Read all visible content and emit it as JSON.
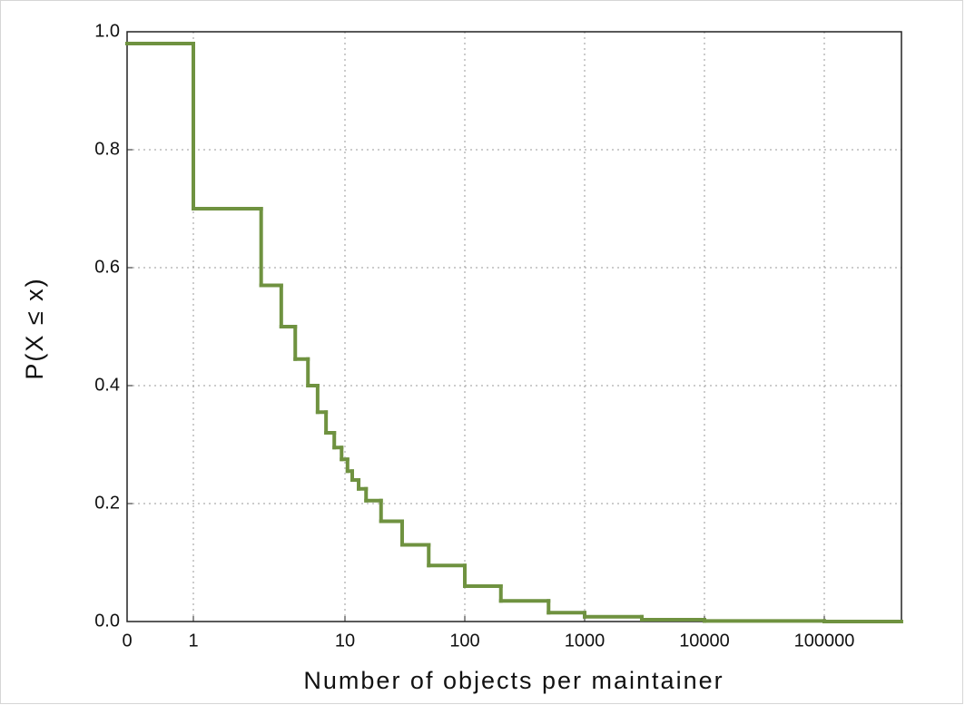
{
  "chart_data": {
    "type": "line",
    "drawstyle": "steps-post",
    "xlabel": "Number of objects per maintainer",
    "ylabel": "P(X ≤ x)",
    "color": "#6f9240",
    "grid": true,
    "x": [
      0,
      1,
      2.8,
      3.8,
      4.7,
      5.7,
      6.6,
      7.5,
      8.5,
      9.5,
      10.5,
      11.5,
      13,
      15,
      20,
      30,
      50,
      100,
      200,
      500,
      1000,
      3000,
      10000,
      100000
    ],
    "values": [
      0.98,
      0.7,
      0.57,
      0.5,
      0.445,
      0.4,
      0.355,
      0.32,
      0.295,
      0.275,
      0.255,
      0.24,
      0.225,
      0.205,
      0.17,
      0.13,
      0.095,
      0.06,
      0.035,
      0.015,
      0.008,
      0.003,
      0.001,
      0
    ],
    "xlim": [
      0,
      440000
    ],
    "xticks": [
      0,
      1,
      10,
      100,
      1000,
      10000,
      100000
    ],
    "ylim": [
      0,
      1
    ],
    "yticks": [
      {
        "value": 0,
        "label": "0.0"
      },
      {
        "value": 0.2,
        "label": "0.2"
      },
      {
        "value": 0.4,
        "label": "0.4"
      },
      {
        "value": 0.6,
        "label": "0.6"
      },
      {
        "value": 0.8,
        "label": "0.8"
      },
      {
        "value": 1,
        "label": "1.0"
      }
    ]
  }
}
